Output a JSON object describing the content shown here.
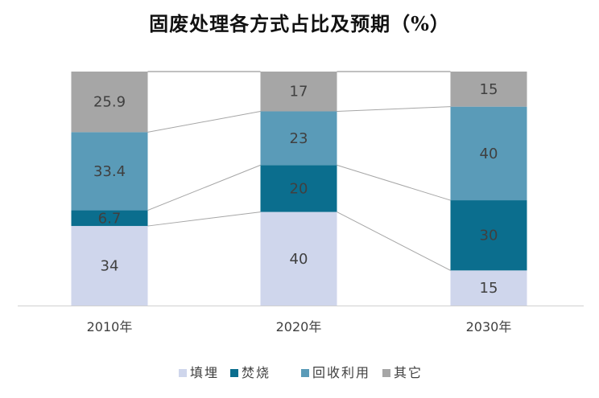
{
  "chart_data": {
    "type": "bar",
    "stacked": true,
    "title": "固废处理各方式占比及预期（%）",
    "categories": [
      "2010年",
      "2020年",
      "2030年"
    ],
    "ylim": [
      0,
      100
    ],
    "grid": false,
    "legend_position": "bottom",
    "connector_lines": true,
    "series": [
      {
        "name": "填埋",
        "color": "#cfd6ec",
        "values": [
          34,
          40,
          15
        ]
      },
      {
        "name": "焚烧",
        "color": "#0b6e8e",
        "values": [
          6.7,
          20,
          30
        ]
      },
      {
        "name": "回收利用",
        "color": "#5a9bb8",
        "values": [
          33.4,
          23,
          40
        ]
      },
      {
        "name": "其它",
        "color": "#a6a6a6",
        "values": [
          25.9,
          17,
          15
        ]
      }
    ]
  }
}
